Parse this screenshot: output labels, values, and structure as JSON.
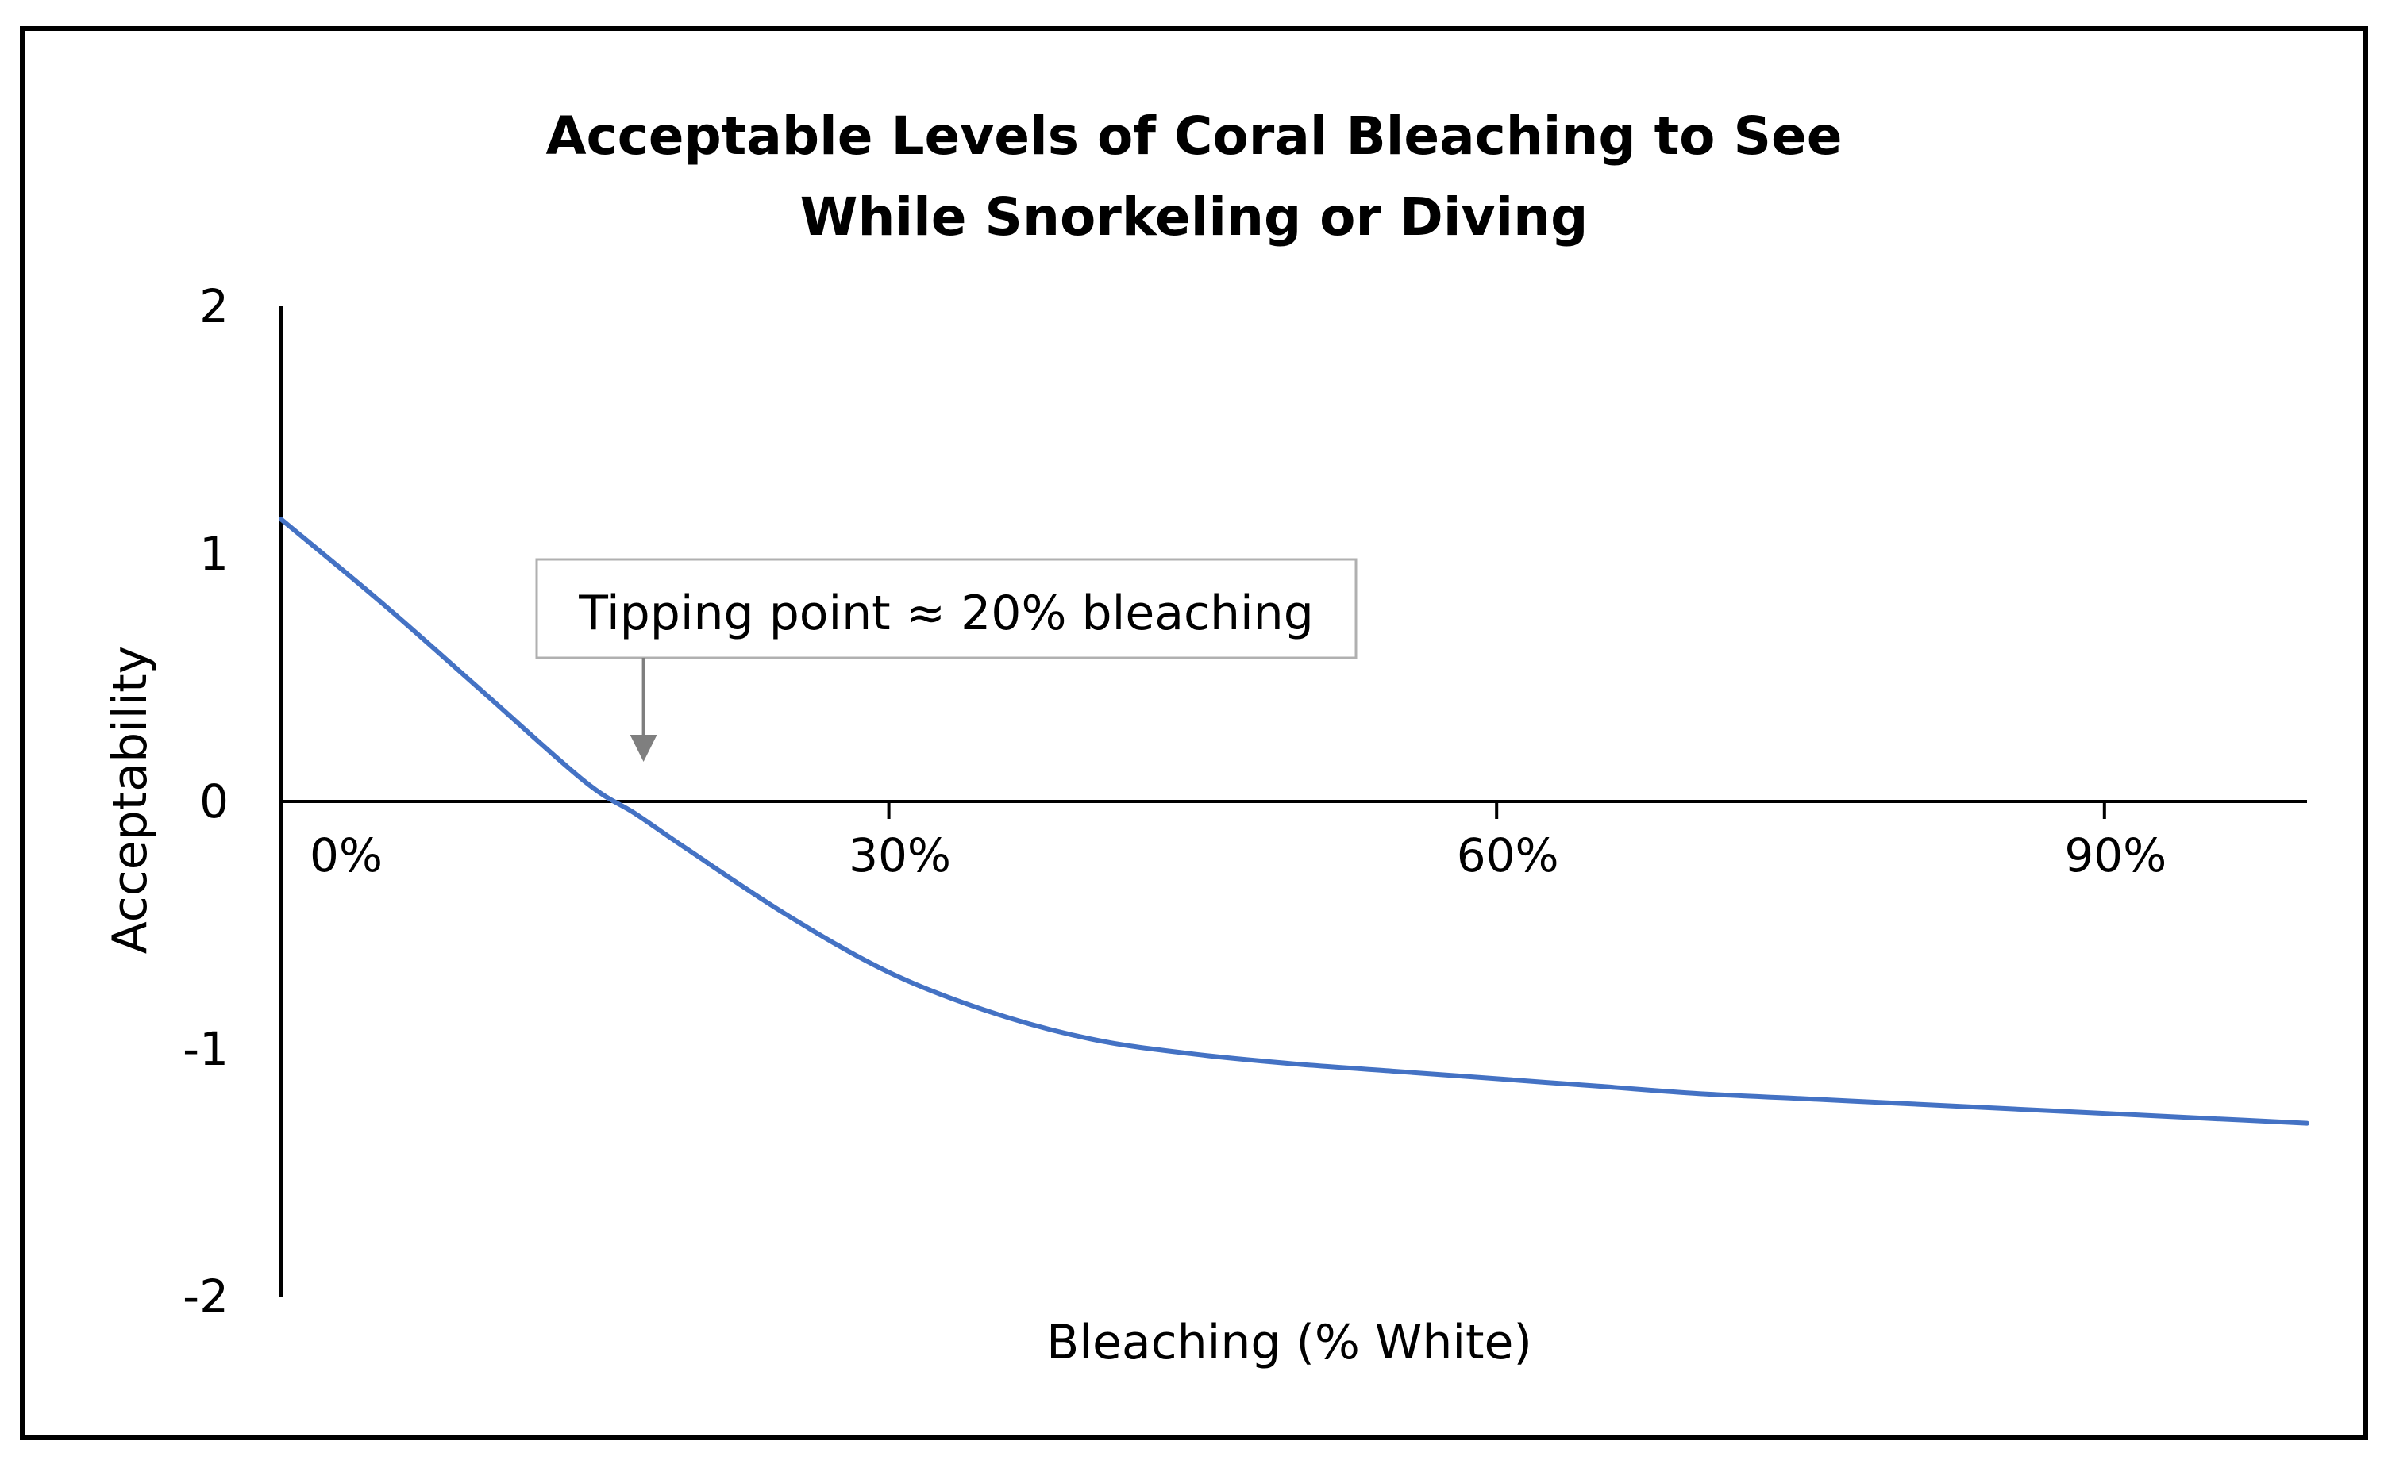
{
  "chart_data": {
    "type": "line",
    "title": "Acceptable Levels of Coral Bleaching to See While Snorkeling or Diving",
    "title_lines": [
      "Acceptable Levels of Coral Bleaching to See",
      "While Snorkeling or Diving"
    ],
    "xlabel": "Bleaching (% White)",
    "ylabel": "Acceptability",
    "xlim": [
      0,
      100
    ],
    "ylim": [
      -2,
      2
    ],
    "x_ticks": [
      {
        "value": 0,
        "label": "0%"
      },
      {
        "value": 30,
        "label": "30%"
      },
      {
        "value": 60,
        "label": "60%"
      },
      {
        "value": 90,
        "label": "90%"
      }
    ],
    "y_ticks": [
      {
        "value": 2,
        "label": "2"
      },
      {
        "value": 1,
        "label": "1"
      },
      {
        "value": 0,
        "label": "0"
      },
      {
        "value": -1,
        "label": "-1"
      },
      {
        "value": -2,
        "label": "-2"
      }
    ],
    "grid": false,
    "series": [
      {
        "name": "Acceptability",
        "color": "#4472C4",
        "x": [
          0,
          5,
          10,
          15,
          17.5,
          20,
          25,
          30,
          35,
          40,
          45,
          50,
          55,
          60,
          65,
          70,
          75,
          80,
          85,
          90,
          95,
          100
        ],
        "y": [
          1.14,
          0.8,
          0.44,
          0.08,
          -0.05,
          -0.19,
          -0.46,
          -0.69,
          -0.85,
          -0.96,
          -1.02,
          -1.06,
          -1.09,
          -1.12,
          -1.15,
          -1.18,
          -1.2,
          -1.22,
          -1.24,
          -1.26,
          -1.28,
          -1.3
        ]
      }
    ],
    "annotation": {
      "text": "Tipping point  ≈ 20% bleaching",
      "arrow_target_x": 17.5,
      "arrow_target_y": 0,
      "arrow_color": "#7f7f7f"
    }
  }
}
